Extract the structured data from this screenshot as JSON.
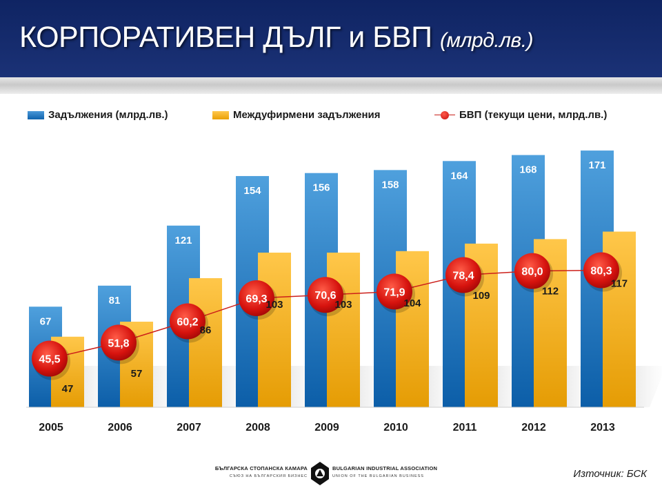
{
  "header": {
    "title": "КОРПОРАТИВЕН ДЪЛГ и БВП",
    "title_unit": "(млрд.лв.)"
  },
  "legend": {
    "liabilities": "Задължения (млрд.лв.)",
    "interfirm": "Междуфирмени задължения",
    "gdp": "БВП (текущи цени, млрд.лв.)"
  },
  "chart_data": {
    "type": "bar",
    "categories": [
      "2005",
      "2006",
      "2007",
      "2008",
      "2009",
      "2010",
      "2011",
      "2012",
      "2013"
    ],
    "series": [
      {
        "name": "Задължения (млрд.лв.)",
        "type": "bar",
        "values": [
          67,
          81,
          121,
          154,
          156,
          158,
          164,
          168,
          171
        ],
        "labels": [
          "67",
          "81",
          "121",
          "154",
          "156",
          "158",
          "164",
          "168",
          "171"
        ]
      },
      {
        "name": "Междуфирмени задължения",
        "type": "bar",
        "values": [
          47,
          57,
          86,
          103,
          103,
          104,
          109,
          112,
          117
        ],
        "labels": [
          "47",
          "57",
          "86",
          "103",
          "103",
          "104",
          "109",
          "112",
          "117"
        ]
      },
      {
        "name": "БВП (текущи цени, млрд.лв.)",
        "type": "line",
        "values": [
          45.5,
          51.8,
          60.2,
          69.3,
          70.6,
          71.9,
          78.4,
          80.0,
          80.3
        ],
        "labels": [
          "45,5",
          "51,8",
          "60,2",
          "69,3",
          "70,6",
          "71,9",
          "78,4",
          "80,0",
          "80,3"
        ]
      }
    ],
    "ylim": [
      0,
      180
    ],
    "grid": false,
    "legend_position": "top",
    "colors": {
      "liabilities": "#1577c4",
      "interfirm": "#f7b21e",
      "gdp": "#d4150f"
    }
  },
  "footer": {
    "org_bg": "БЪЛГАРСКА СТОПАНСКА КАМАРА",
    "org_bg_sub": "СЪЮЗ НА БЪЛГАРСКИЯ БИЗНЕС",
    "org_en": "BULGARIAN INDUSTRIAL ASSOCIATION",
    "org_en_sub": "UNION OF THE BULGARIAN BUSINESS",
    "logo_icon": "bia-logo-icon",
    "source": "Източник: БСК"
  }
}
